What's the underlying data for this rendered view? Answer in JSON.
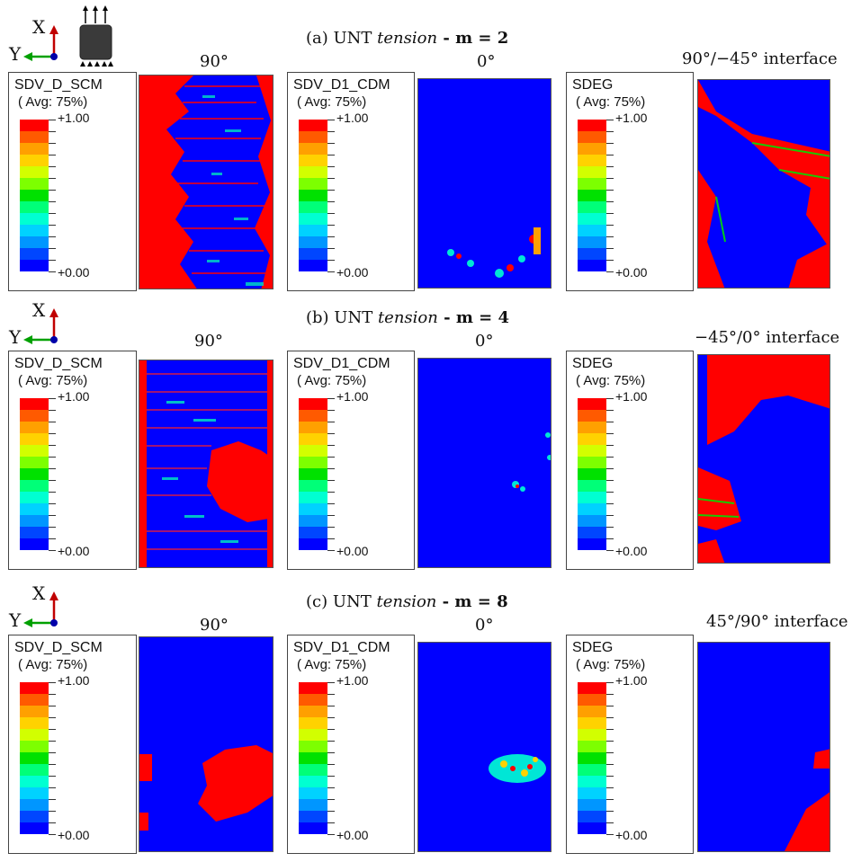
{
  "rows": [
    {
      "title_prefix": "(a) UNT ",
      "title_italic": "tension",
      "title_bold": " - m = 2",
      "columns": [
        {
          "label": "90°",
          "legend_name": "SDV_D_SCM"
        },
        {
          "label": "0°",
          "legend_name": "SDV_D1_CDM"
        },
        {
          "label": "90°/−45° interface",
          "legend_name": "SDEG"
        }
      ]
    },
    {
      "title_prefix": "(b) UNT ",
      "title_italic": "tension",
      "title_bold": " - m = 4",
      "columns": [
        {
          "label": "90°",
          "legend_name": "SDV_D_SCM"
        },
        {
          "label": "0°",
          "legend_name": "SDV_D1_CDM"
        },
        {
          "label": "−45°/0° interface",
          "legend_name": "SDEG"
        }
      ]
    },
    {
      "title_prefix": "(c) UNT ",
      "title_italic": "tension",
      "title_bold": " - m = 8",
      "columns": [
        {
          "label": "90°",
          "legend_name": "SDV_D_SCM"
        },
        {
          "label": "0°",
          "legend_name": "SDV_D1_CDM"
        },
        {
          "label": "45°/90° interface",
          "legend_name": "SDEG"
        }
      ]
    }
  ],
  "legend": {
    "avg": "( Avg: 75%)",
    "max": "+1.00",
    "min": "+0.00",
    "colors": [
      "#ff0000",
      "#ff5a00",
      "#ffa000",
      "#ffd200",
      "#d2ff00",
      "#7dff00",
      "#00e100",
      "#00ff78",
      "#00ffd2",
      "#00d2ff",
      "#0096ff",
      "#0046ff",
      "#0000ff"
    ]
  },
  "axes": {
    "x": "X",
    "y": "Y"
  },
  "colors": {
    "damage_full": "#ff0000",
    "damage_none": "#0000ff"
  }
}
